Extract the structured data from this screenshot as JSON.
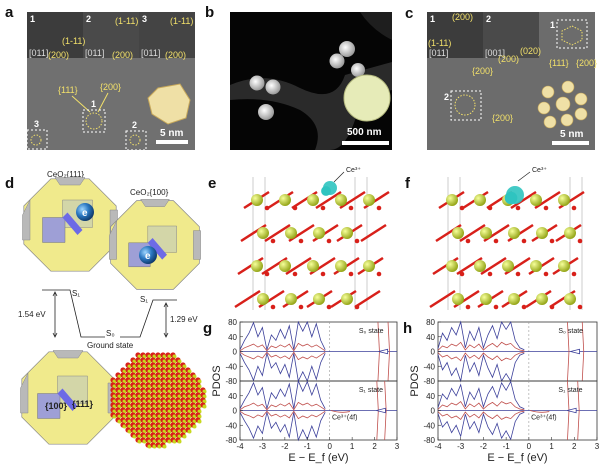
{
  "panels": {
    "a": {
      "label": "a",
      "insets": [
        "1",
        "2",
        "3"
      ],
      "zone_axes": [
        "[011]",
        "[011]",
        "[011]"
      ],
      "spots": [
        "(1-11)",
        "(200)",
        "(1-11)",
        "(200)",
        "(1-11)",
        "(200)"
      ],
      "main_labels": [
        "{111}",
        "{200}"
      ],
      "boxes": [
        "1",
        "2",
        "3"
      ],
      "scale": "5 nm"
    },
    "b": {
      "label": "b",
      "scale": "500 nm"
    },
    "c": {
      "label": "c",
      "insets": [
        "1",
        "2"
      ],
      "zone_axes": [
        "[011]",
        "[001]"
      ],
      "spots": [
        "(200)",
        "(1-11)",
        "(020)",
        "(200)"
      ],
      "box1": "1",
      "box1_labels": [
        "{111}",
        "{200}"
      ],
      "box2": "2",
      "box2_labels": [
        "{200}",
        "{200}"
      ],
      "scale": "5 nm"
    },
    "d": {
      "label": "d",
      "model1_title": "CeO₂{111}",
      "model2_title": "CeO₂{100}",
      "electron": "e",
      "energy": {
        "s1_left": "S₁",
        "s1_right": "S₁",
        "s0": "S₀",
        "ground": "Ground state",
        "gap_left": "1.54 eV",
        "gap_right": "1.29 eV"
      },
      "facet_100": "{100}",
      "facet_111": "{111}"
    },
    "e": {
      "label": "e",
      "annotation": "Ce³⁺"
    },
    "f": {
      "label": "f",
      "annotation": "Ce³⁺"
    }
  },
  "colors": {
    "ce_atom": "#c8d81e",
    "o_atom": "#d8201a",
    "spin_density": "#2fc4c0",
    "tdos": "#3b3f9a",
    "ce4f": "#c0504d",
    "annotation_yellow": "#f2e06a"
  },
  "chart_data": [
    {
      "panel": "g",
      "type": "line",
      "xlabel": "E − E_f (eV)",
      "ylabel": "PDOS",
      "xlim": [
        -4,
        3
      ],
      "ylim": [
        -80,
        80
      ],
      "xticks": [
        -4,
        -3,
        -2,
        -1,
        0,
        1,
        2,
        3
      ],
      "yticks": [
        80,
        40,
        0,
        -40,
        -80
      ],
      "fermi_line": 0,
      "subplots": [
        {
          "state": "S₀ state",
          "x": [
            -4,
            -3.8,
            -3.6,
            -3.4,
            -3.2,
            -3.0,
            -2.8,
            -2.6,
            -2.4,
            -2.2,
            -2.0,
            -1.8,
            -1.6,
            -1.4,
            -1.2,
            -1.0,
            -0.8,
            -0.6,
            -0.4,
            -0.2
          ],
          "series": [
            {
              "values": [
                5,
                30,
                50,
                78,
                40,
                65,
                5,
                45,
                30,
                60,
                35,
                70,
                5,
                80,
                55,
                80,
                40,
                75,
                30,
                5
              ]
            },
            {
              "values": [
                2,
                10,
                15,
                20,
                12,
                18,
                2,
                15,
                10,
                18,
                12,
                20,
                2,
                22,
                15,
                20,
                12,
                18,
                10,
                2
              ]
            }
          ],
          "ce4f_peaks": [
            2.15,
            2.6
          ],
          "gap_state_peak": 2.45
        },
        {
          "state": "S₁ state",
          "annotation": "Ce³⁺(4f)",
          "x": [
            -4,
            -3.8,
            -3.6,
            -3.4,
            -3.2,
            -3.0,
            -2.8,
            -2.6,
            -2.4,
            -2.2,
            -2.0,
            -1.8,
            -1.6,
            -1.4,
            -1.2,
            -1.0,
            -0.8,
            -0.6,
            -0.4,
            -0.2
          ],
          "series": [
            {
              "values": [
                5,
                28,
                48,
                75,
                42,
                62,
                5,
                48,
                32,
                58,
                38,
                72,
                5,
                80,
                52,
                78,
                42,
                72,
                28,
                5
              ]
            },
            {
              "values": [
                2,
                10,
                14,
                20,
                12,
                17,
                2,
                15,
                10,
                18,
                12,
                20,
                2,
                22,
                15,
                20,
                12,
                17,
                10,
                2
              ]
            }
          ],
          "ce4f_peaks": [
            2.1,
            2.45
          ],
          "gap_state_peak": 2.35
        }
      ]
    },
    {
      "panel": "h",
      "type": "line",
      "xlabel": "E − E_f (eV)",
      "ylabel": "PDOS",
      "xlim": [
        -4,
        3
      ],
      "ylim": [
        -80,
        80
      ],
      "xticks": [
        -4,
        -3,
        -2,
        -1,
        0,
        1,
        2,
        3
      ],
      "yticks": [
        80,
        40,
        0,
        -40,
        -80
      ],
      "fermi_line": 0,
      "subplots": [
        {
          "state": "S₀ state",
          "x": [
            -4,
            -3.8,
            -3.6,
            -3.4,
            -3.2,
            -3.0,
            -2.8,
            -2.6,
            -2.4,
            -2.2,
            -2.0,
            -1.8,
            -1.6,
            -1.4,
            -1.2,
            -1.0,
            -0.8,
            -0.6,
            -0.4,
            -0.2
          ],
          "series": [
            {
              "values": [
                8,
                50,
                30,
                65,
                45,
                80,
                10,
                55,
                30,
                65,
                10,
                45,
                70,
                35,
                80,
                60,
                80,
                30,
                10,
                5
              ]
            },
            {
              "values": [
                3,
                15,
                10,
                20,
                15,
                25,
                4,
                18,
                10,
                20,
                4,
                15,
                22,
                12,
                25,
                18,
                22,
                10,
                4,
                2
              ]
            }
          ],
          "ce4f_peaks": [
            1.7,
            2.35
          ],
          "gap_state_peak": 2.1
        },
        {
          "state": "S₁ state",
          "annotation": "Ce³⁺(4f)",
          "x": [
            -4,
            -3.8,
            -3.6,
            -3.4,
            -3.2,
            -3.0,
            -2.8,
            -2.6,
            -2.4,
            -2.2,
            -2.0,
            -1.8,
            -1.6,
            -1.4,
            -1.2,
            -1.0,
            -0.8,
            -0.6,
            -0.4,
            -0.2
          ],
          "series": [
            {
              "values": [
                8,
                45,
                30,
                60,
                40,
                70,
                10,
                50,
                30,
                60,
                10,
                45,
                65,
                35,
                75,
                55,
                78,
                30,
                10,
                5
              ]
            },
            {
              "values": [
                3,
                15,
                10,
                20,
                15,
                24,
                4,
                18,
                10,
                20,
                4,
                15,
                22,
                12,
                24,
                18,
                22,
                10,
                4,
                2
              ]
            }
          ],
          "ce4f_peaks": [
            1.7,
            2.15
          ],
          "gap_state_peak": 1.95
        }
      ]
    }
  ]
}
